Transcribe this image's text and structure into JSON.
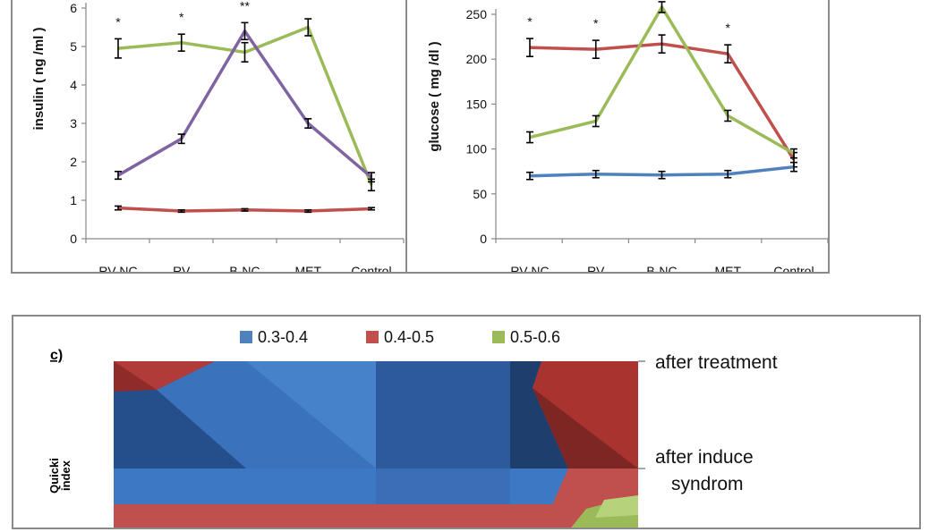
{
  "chart_data": [
    {
      "type": "line",
      "ylabel": "insulin ( ng /ml )",
      "ylim": [
        0,
        6
      ],
      "yticks": [
        0,
        1,
        2,
        3,
        4,
        5,
        6
      ],
      "categories": [
        "RV-NC",
        "RV",
        "B-NC",
        "MET",
        "Control"
      ],
      "significance": [
        "*",
        "*",
        "**",
        "",
        ""
      ],
      "grid": false,
      "series": [
        {
          "color": "#9bbb59",
          "values": [
            4.95,
            5.1,
            4.85,
            5.5,
            1.4
          ],
          "errors": [
            0.25,
            0.22,
            0.25,
            0.22,
            0.15
          ]
        },
        {
          "color": "#8064a2",
          "values": [
            1.65,
            2.6,
            5.4,
            3.0,
            1.6
          ],
          "errors": [
            0.1,
            0.12,
            0.22,
            0.12,
            0.12
          ]
        },
        {
          "color": "#c0504d",
          "values": [
            0.8,
            0.72,
            0.75,
            0.72,
            0.78
          ],
          "errors": [
            0.05,
            0.03,
            0.03,
            0.03,
            0.03
          ]
        }
      ]
    },
    {
      "type": "line",
      "ylabel": "glucose ( mg /dl )",
      "ylim": [
        0,
        250
      ],
      "yticks": [
        0,
        50,
        100,
        150,
        200,
        250
      ],
      "categories": [
        "RV-NC",
        "RV",
        "B-NC",
        "MET",
        "Control"
      ],
      "significance": [
        "*",
        "*",
        "",
        "*",
        ""
      ],
      "grid": false,
      "series": [
        {
          "color": "#c0504d",
          "values": [
            213,
            211,
            217,
            206,
            88
          ],
          "errors": [
            10,
            10,
            10,
            10,
            8
          ]
        },
        {
          "color": "#9bbb59",
          "values": [
            113,
            131,
            258,
            137,
            95
          ],
          "errors": [
            6,
            6,
            6,
            6,
            5
          ]
        },
        {
          "color": "#4f81bd",
          "values": [
            70,
            72,
            71,
            72,
            80
          ],
          "errors": [
            4,
            4,
            4,
            4,
            5
          ]
        }
      ]
    },
    {
      "type": "area",
      "panel_label": "c)",
      "ylabel": "Quicki index",
      "legend": [
        {
          "label": "0.3-0.4",
          "color": "#4f81bd"
        },
        {
          "label": "0.4-0.5",
          "color": "#c0504d"
        },
        {
          "label": "0.5-0.6",
          "color": "#9bbb59"
        }
      ],
      "legend_position": "top",
      "row_labels": [
        "after treatment",
        "after induce syndrom"
      ]
    }
  ]
}
